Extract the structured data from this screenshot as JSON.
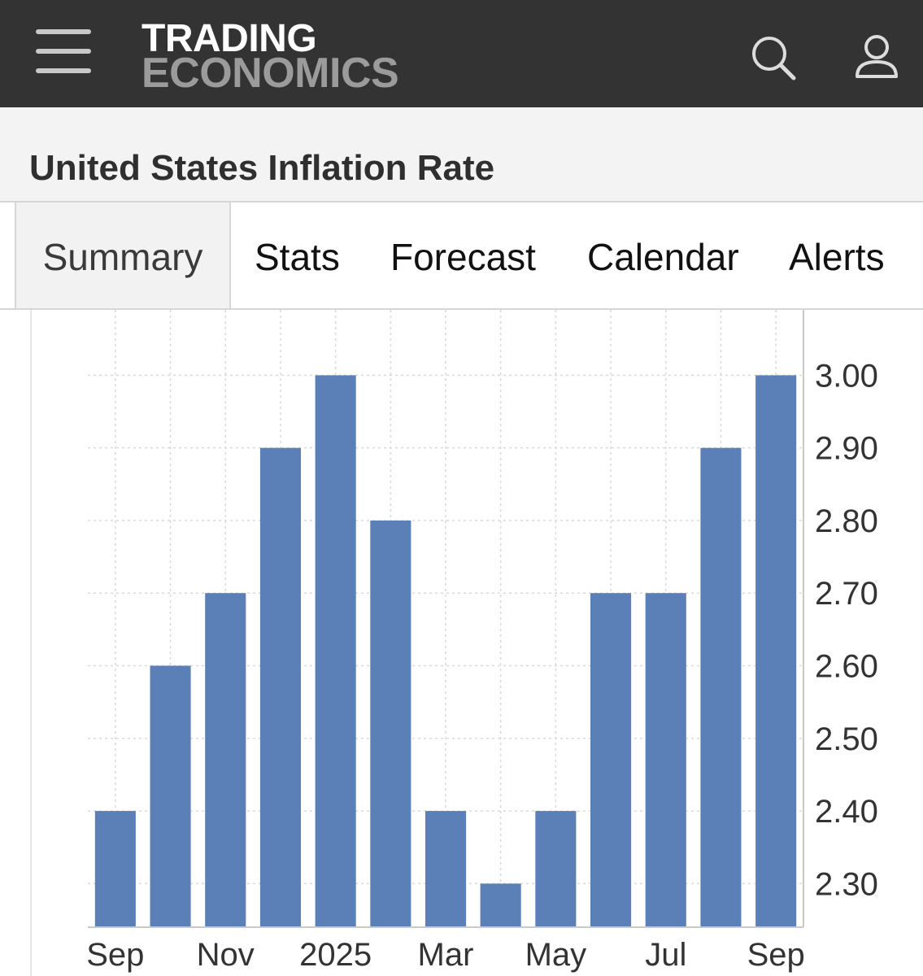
{
  "header": {
    "logo_line1": "TRADING",
    "logo_line2": "ECONOMICS",
    "menu_icon": "hamburger-menu-icon",
    "search_icon": "search-icon",
    "user_icon": "user-icon",
    "bg_color": "#333333"
  },
  "page": {
    "title": "United States Inflation Rate"
  },
  "tabs": [
    {
      "label": "Summary",
      "active": true
    },
    {
      "label": "Stats",
      "active": false
    },
    {
      "label": "Forecast",
      "active": false
    },
    {
      "label": "Calendar",
      "active": false
    },
    {
      "label": "Alerts",
      "active": false
    }
  ],
  "chart_data": {
    "type": "bar",
    "title": "",
    "xlabel": "",
    "ylabel": "",
    "categories": [
      "Sep 2024",
      "Oct 2024",
      "Nov 2024",
      "Dec 2024",
      "Jan 2025",
      "Feb 2025",
      "Mar 2025",
      "Apr 2025",
      "May 2025",
      "Jun 2025",
      "Jul 2025",
      "Aug 2025",
      "Sep 2025"
    ],
    "values": [
      2.4,
      2.6,
      2.7,
      2.9,
      3.0,
      2.8,
      2.4,
      2.3,
      2.4,
      2.7,
      2.7,
      2.9,
      3.0
    ],
    "x_tick_labels": [
      "Sep",
      "Nov",
      "2025",
      "Mar",
      "May",
      "Jul",
      "Sep"
    ],
    "y_tick_labels": [
      "3.00",
      "2.90",
      "2.80",
      "2.70",
      "2.60",
      "2.50",
      "2.40",
      "2.30"
    ],
    "y_ticks": [
      3.0,
      2.9,
      2.8,
      2.7,
      2.6,
      2.5,
      2.4,
      2.3
    ],
    "ylim": [
      2.24,
      3.09
    ],
    "bar_color": "#5b80b8",
    "grid": true,
    "y_axis_position": "right"
  }
}
